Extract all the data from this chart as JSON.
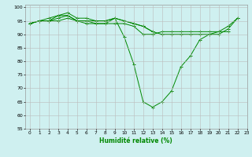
{
  "xlabel": "Humidité relative (%)",
  "xlim": [
    -0.5,
    23
  ],
  "ylim": [
    55,
    101
  ],
  "yticks": [
    55,
    60,
    65,
    70,
    75,
    80,
    85,
    90,
    95,
    100
  ],
  "xticks": [
    0,
    1,
    2,
    3,
    4,
    5,
    6,
    7,
    8,
    9,
    10,
    11,
    12,
    13,
    14,
    15,
    16,
    17,
    18,
    19,
    20,
    21,
    22,
    23
  ],
  "background_color": "#cff0f0",
  "grid_color": "#bbbbbb",
  "line_color": "#008800",
  "curves": [
    [
      94,
      95,
      95,
      97,
      97,
      95,
      95,
      94,
      94,
      96,
      89,
      79,
      65,
      63,
      65,
      69,
      78,
      82,
      88,
      90,
      91,
      93,
      96,
      null
    ],
    [
      94,
      95,
      95,
      95,
      96,
      95,
      94,
      94,
      94,
      94,
      94,
      93,
      90,
      90,
      91,
      91,
      91,
      91,
      91,
      91,
      91,
      91,
      null,
      null
    ],
    [
      94,
      95,
      95,
      96,
      97,
      95,
      95,
      95,
      95,
      96,
      95,
      94,
      93,
      91,
      90,
      90,
      90,
      90,
      90,
      90,
      90,
      92,
      96,
      null
    ],
    [
      94,
      95,
      96,
      97,
      98,
      96,
      96,
      95,
      95,
      96,
      95,
      94,
      93,
      91,
      null,
      null,
      null,
      null,
      null,
      null,
      null,
      null,
      null,
      null
    ]
  ]
}
